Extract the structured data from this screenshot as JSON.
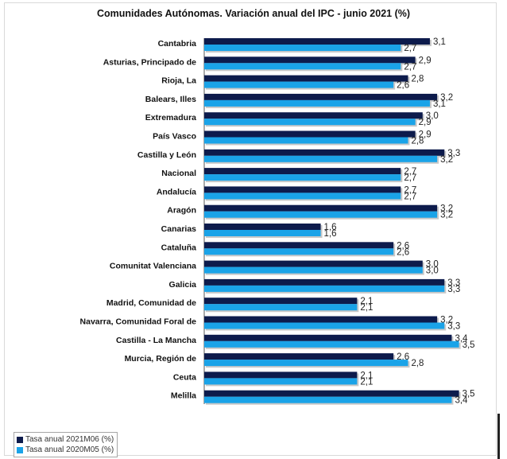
{
  "chart_data": {
    "type": "bar",
    "orientation": "horizontal",
    "title": "Comunidades Autónomas. Variación anual del IPC - junio 2021 (%)",
    "categories": [
      "Cantabria",
      "Asturias, Principado de",
      "Rioja, La",
      "Balears, Illes",
      "Extremadura",
      "País Vasco",
      "Castilla y León",
      "Nacional",
      "Andalucía",
      "Aragón",
      "Canarias",
      "Cataluña",
      "Comunitat Valenciana",
      "Galicia",
      "Madrid, Comunidad de",
      "Navarra, Comunidad Foral de",
      "Castilla - La Mancha",
      "Murcia, Región de",
      "Ceuta",
      "Melilla"
    ],
    "series": [
      {
        "name": "Tasa anual 2021M06 (%)",
        "color": "#0d1b4c",
        "values": [
          3.1,
          2.9,
          2.8,
          3.2,
          3.0,
          2.9,
          3.3,
          2.7,
          2.7,
          3.2,
          1.6,
          2.6,
          3.0,
          3.3,
          2.1,
          3.2,
          3.4,
          2.6,
          2.1,
          3.5
        ],
        "labels": [
          "3,1",
          "2,9",
          "2,8",
          "3,2",
          "3,0",
          "2,9",
          "3,3",
          "2,7",
          "2,7",
          "3,2",
          "1,6",
          "2,6",
          "3,0",
          "3,3",
          "2,1",
          "3,2",
          "3,4",
          "2,6",
          "2,1",
          "3,5"
        ]
      },
      {
        "name": "Tasa anual 2020M05 (%)",
        "color": "#1aa3e8",
        "values": [
          2.7,
          2.7,
          2.6,
          3.1,
          2.9,
          2.8,
          3.2,
          2.7,
          2.7,
          3.2,
          1.6,
          2.6,
          3.0,
          3.3,
          2.1,
          3.3,
          3.5,
          2.8,
          2.1,
          3.4
        ],
        "labels": [
          "2,7",
          "2,7",
          "2,6",
          "3,1",
          "2,9",
          "2,8",
          "3,2",
          "2,7",
          "2,7",
          "3,2",
          "1,6",
          "2,6",
          "3,0",
          "3,3",
          "2,1",
          "3,3",
          "3,5",
          "2,8",
          "2,1",
          "3,4"
        ]
      }
    ],
    "grid": false,
    "legend_position": "bottom-left"
  }
}
